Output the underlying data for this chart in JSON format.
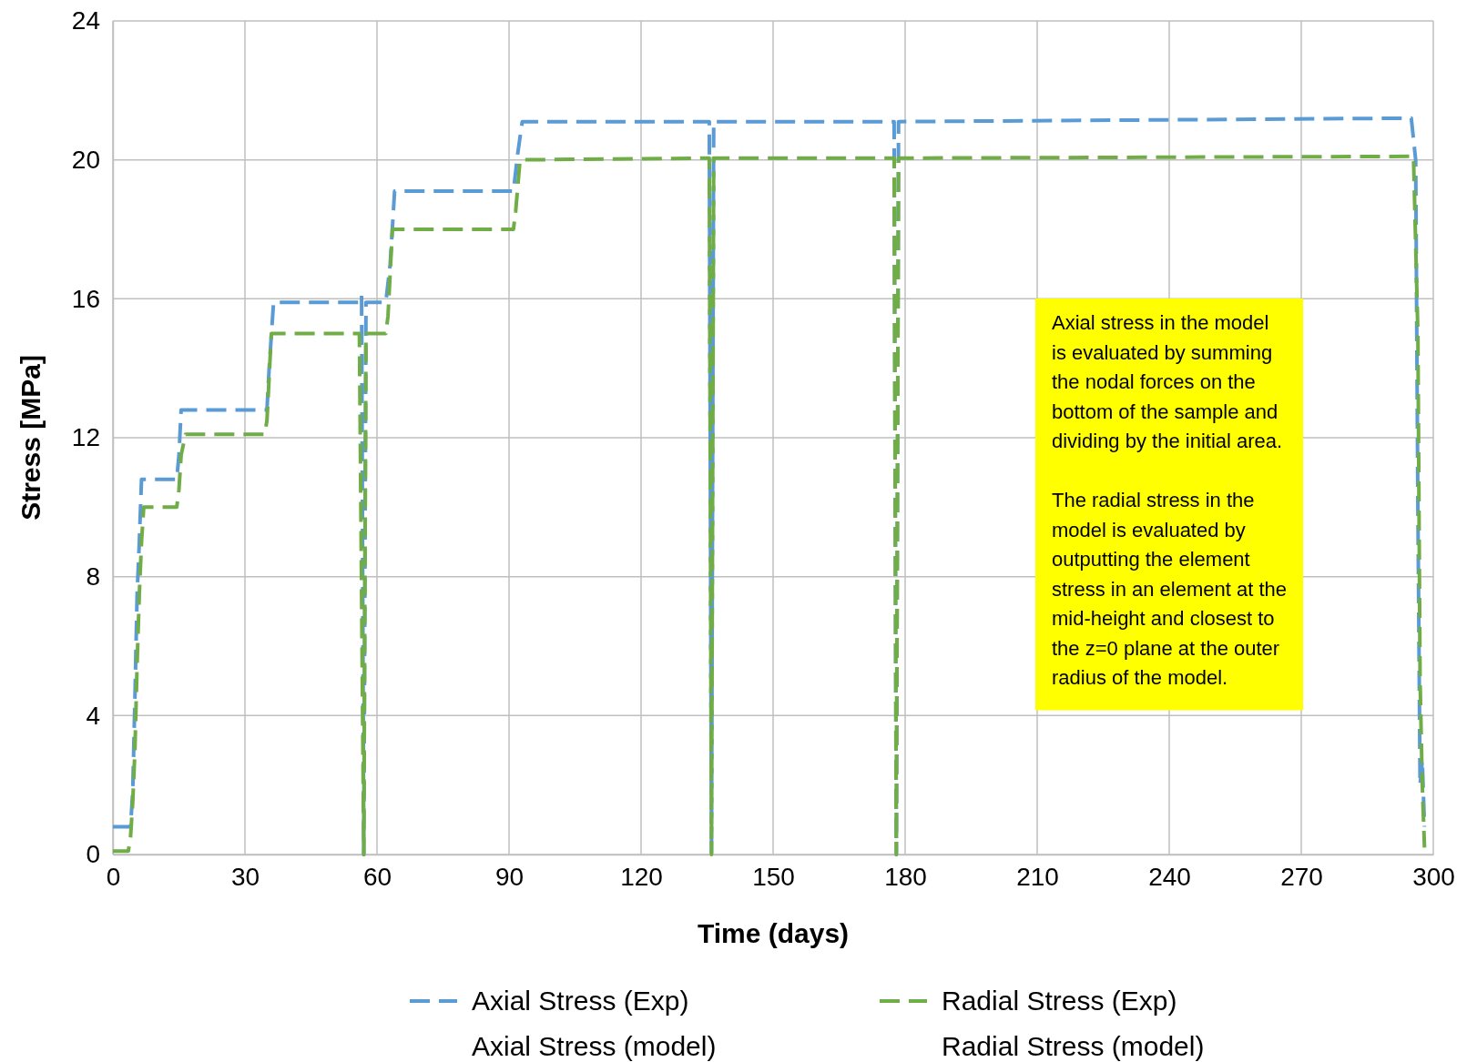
{
  "chart_data": {
    "type": "line",
    "xlabel": "Time (days)",
    "ylabel": "Stress [MPa]",
    "xlim": [
      0,
      300
    ],
    "xticks": [
      0,
      30,
      60,
      90,
      120,
      150,
      180,
      210,
      240,
      270,
      300
    ],
    "ylim": [
      0,
      24
    ],
    "yticks": [
      0,
      4,
      8,
      12,
      16,
      20,
      24
    ],
    "grid": true,
    "legend": "bottom",
    "marker": "none",
    "line_style": "dashed",
    "series": [
      {
        "name": "Axial Stress (Exp)",
        "color": "#5b9bd5",
        "x": [
          0,
          4,
          4.5,
          5,
          5.5,
          6,
          6.5,
          14.5,
          15,
          15.5,
          35,
          35.5,
          36.5,
          56,
          56.5,
          57,
          57.5,
          62,
          63,
          64,
          91,
          92,
          93,
          135.5,
          136,
          136.5,
          177.5,
          178,
          178.5,
          295,
          296,
          296.5,
          297,
          297.5,
          298
        ],
        "values": [
          0.8,
          0.8,
          1.8,
          4.5,
          7.5,
          9,
          10.8,
          10.8,
          11.5,
          12.8,
          12.8,
          14,
          15.9,
          15.9,
          16.1,
          0,
          15.9,
          15.9,
          17,
          19.1,
          19.1,
          20.2,
          21.1,
          21.1,
          0,
          21.1,
          21.1,
          0,
          21.1,
          21.2,
          20,
          10,
          2,
          2.7,
          0.8
        ]
      },
      {
        "name": "Radial Stress (Exp)",
        "color": "#70ad47",
        "x": [
          0,
          3.5,
          4,
          4.5,
          5,
          5.5,
          6,
          6.5,
          7,
          14.5,
          15,
          15.5,
          16.5,
          34.5,
          35,
          36,
          56,
          57,
          57.5,
          62,
          62.5,
          63.5,
          91,
          91.5,
          92.5,
          135.5,
          136,
          136.5,
          177.5,
          178,
          178.5,
          295.5,
          296.5,
          297,
          297.5,
          298
        ],
        "values": [
          0.1,
          0.1,
          0.5,
          1.5,
          3,
          5.5,
          7.5,
          9,
          10,
          10,
          10.5,
          11.5,
          12.1,
          12.1,
          12.5,
          15,
          15,
          0,
          15,
          15,
          15.5,
          18,
          18,
          18.5,
          20,
          20.05,
          0,
          20.05,
          20.05,
          0,
          20.05,
          20.1,
          15,
          5,
          2,
          0.2
        ]
      }
    ],
    "annotations": [
      "Axial stress in the model is evaluated by summing the nodal forces on the bottom of the sample and dividing by the initial area.",
      "The radial stress in the model is evaluated by outputting the element stress in an element at the mid-height and closest to the z=0 plane at the outer radius of the model.",
      "Axial Stress (model)",
      "Radial Stress (model)"
    ]
  }
}
